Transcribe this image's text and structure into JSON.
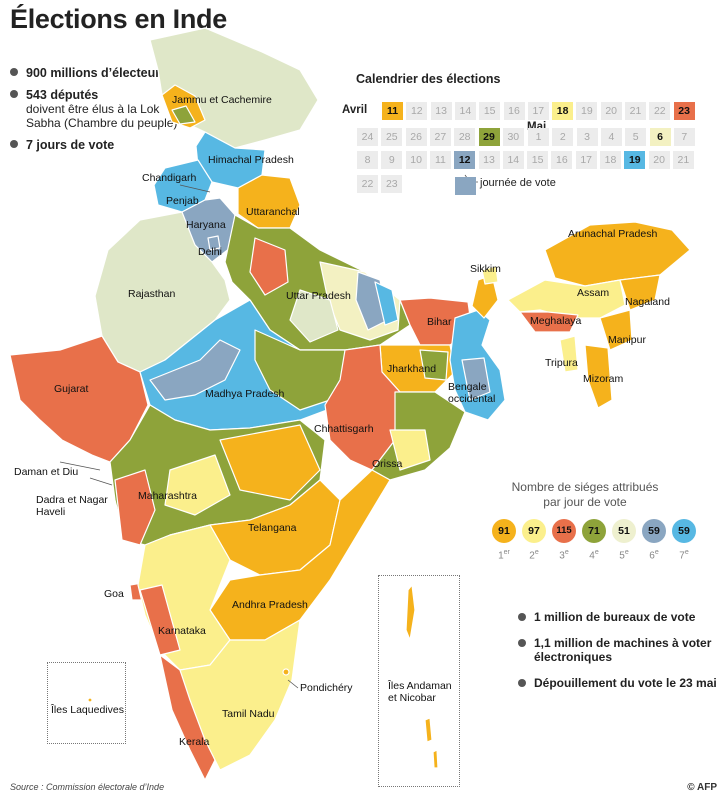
{
  "title": "Élections en Inde",
  "facts": [
    {
      "bold": "900 millions d’électeurs",
      "rest": ""
    },
    {
      "bold": "543 députés",
      "rest": "doivent être élus à la Lok Sabha (Chambre du peuple)"
    },
    {
      "bold": "7 jours de vote",
      "rest": ""
    }
  ],
  "calendar": {
    "title": "Calendrier des élections",
    "april_label": "Avril",
    "may_label": "Mai",
    "april_row1": [
      "11",
      "12",
      "13",
      "14",
      "15",
      "16",
      "17",
      "18",
      "19",
      "20",
      "21",
      "22",
      "23"
    ],
    "april_row2": [
      "24",
      "25",
      "26",
      "27",
      "28",
      "29",
      "30"
    ],
    "may_row1": [
      "1",
      "2",
      "3",
      "4",
      "5",
      "6",
      "7"
    ],
    "may_row2": [
      "8",
      "9",
      "10",
      "11",
      "12",
      "13",
      "14",
      "15",
      "16",
      "17",
      "18",
      "19",
      "20",
      "21"
    ],
    "may_row3": [
      "22",
      "23"
    ],
    "vote_days": {
      "april": [
        "11",
        "18",
        "23",
        "29"
      ],
      "may": [
        "6",
        "12",
        "19"
      ]
    },
    "vote_colors": {
      "11": "#f5b21c",
      "18": "#fbef8c",
      "23": "#e8704a",
      "29": "#8ea33a",
      "6": "#f3f1c2",
      "12": "#8aa6c1",
      "19": "#57b8e3"
    },
    "legend_label": "journée de vote"
  },
  "seats": {
    "title": "Nombre de siéges attribués par jour de vote",
    "phases": [
      {
        "value": "91",
        "ordinal": "1",
        "suffix": "er",
        "color": "#f5b21c"
      },
      {
        "value": "97",
        "ordinal": "2",
        "suffix": "e",
        "color": "#fbef8c"
      },
      {
        "value": "115",
        "ordinal": "3",
        "suffix": "e",
        "color": "#e8704a"
      },
      {
        "value": "71",
        "ordinal": "4",
        "suffix": "e",
        "color": "#8ea33a"
      },
      {
        "value": "51",
        "ordinal": "5",
        "suffix": "e",
        "color": "#eef0cf"
      },
      {
        "value": "59",
        "ordinal": "6",
        "suffix": "e",
        "color": "#8aa6c1"
      },
      {
        "value": "59",
        "ordinal": "7",
        "suffix": "e",
        "color": "#57b8e3"
      }
    ]
  },
  "stats": [
    "1 million de bureaux de vote",
    "1,1 million de machines à voter électroniques",
    "Dépouillement du vote le 23 mai"
  ],
  "map_labels": {
    "jammu": "Jammu et Cachemire",
    "himachal": "Himachal Pradesh",
    "chandigarh": "Chandigarh",
    "penjab": "Penjab",
    "uttaranchal": "Uttaranchal",
    "haryana": "Haryana",
    "delhi": "Delhi",
    "rajasthan": "Rajasthan",
    "uttar": "Uttar Pradesh",
    "sikkim": "Sikkim",
    "arunachal": "Arunachal Pradesh",
    "assam": "Assam",
    "nagaland": "Nagaland",
    "meghalaya": "Meghalaya",
    "manipur": "Manipur",
    "tripura": "Tripura",
    "mizoram": "Mizoram",
    "bihar": "Bihar",
    "jharkhand": "Jharkhand",
    "bengale": "Bengale occidental",
    "gujarat": "Gujarat",
    "madhya": "Madhya Pradesh",
    "chhattisgarh": "Chhattisgarh",
    "orissa": "Orissa",
    "daman": "Daman et Diu",
    "dadra": "Dadra et Nagar Haveli",
    "maharashtra": "Maharashtra",
    "telangana": "Telangana",
    "goa": "Goa",
    "andhra": "Andhra Pradesh",
    "karnataka": "Karnataka",
    "pondichery": "Pondichéry",
    "laquedives": "Îles Laquedives",
    "tamil": "Tamil Nadu",
    "kerala": "Kerala",
    "andaman": "Îles Andaman et Nicobar"
  },
  "source": "Source : Commission électorale d’Inde",
  "credit": "© AFP"
}
